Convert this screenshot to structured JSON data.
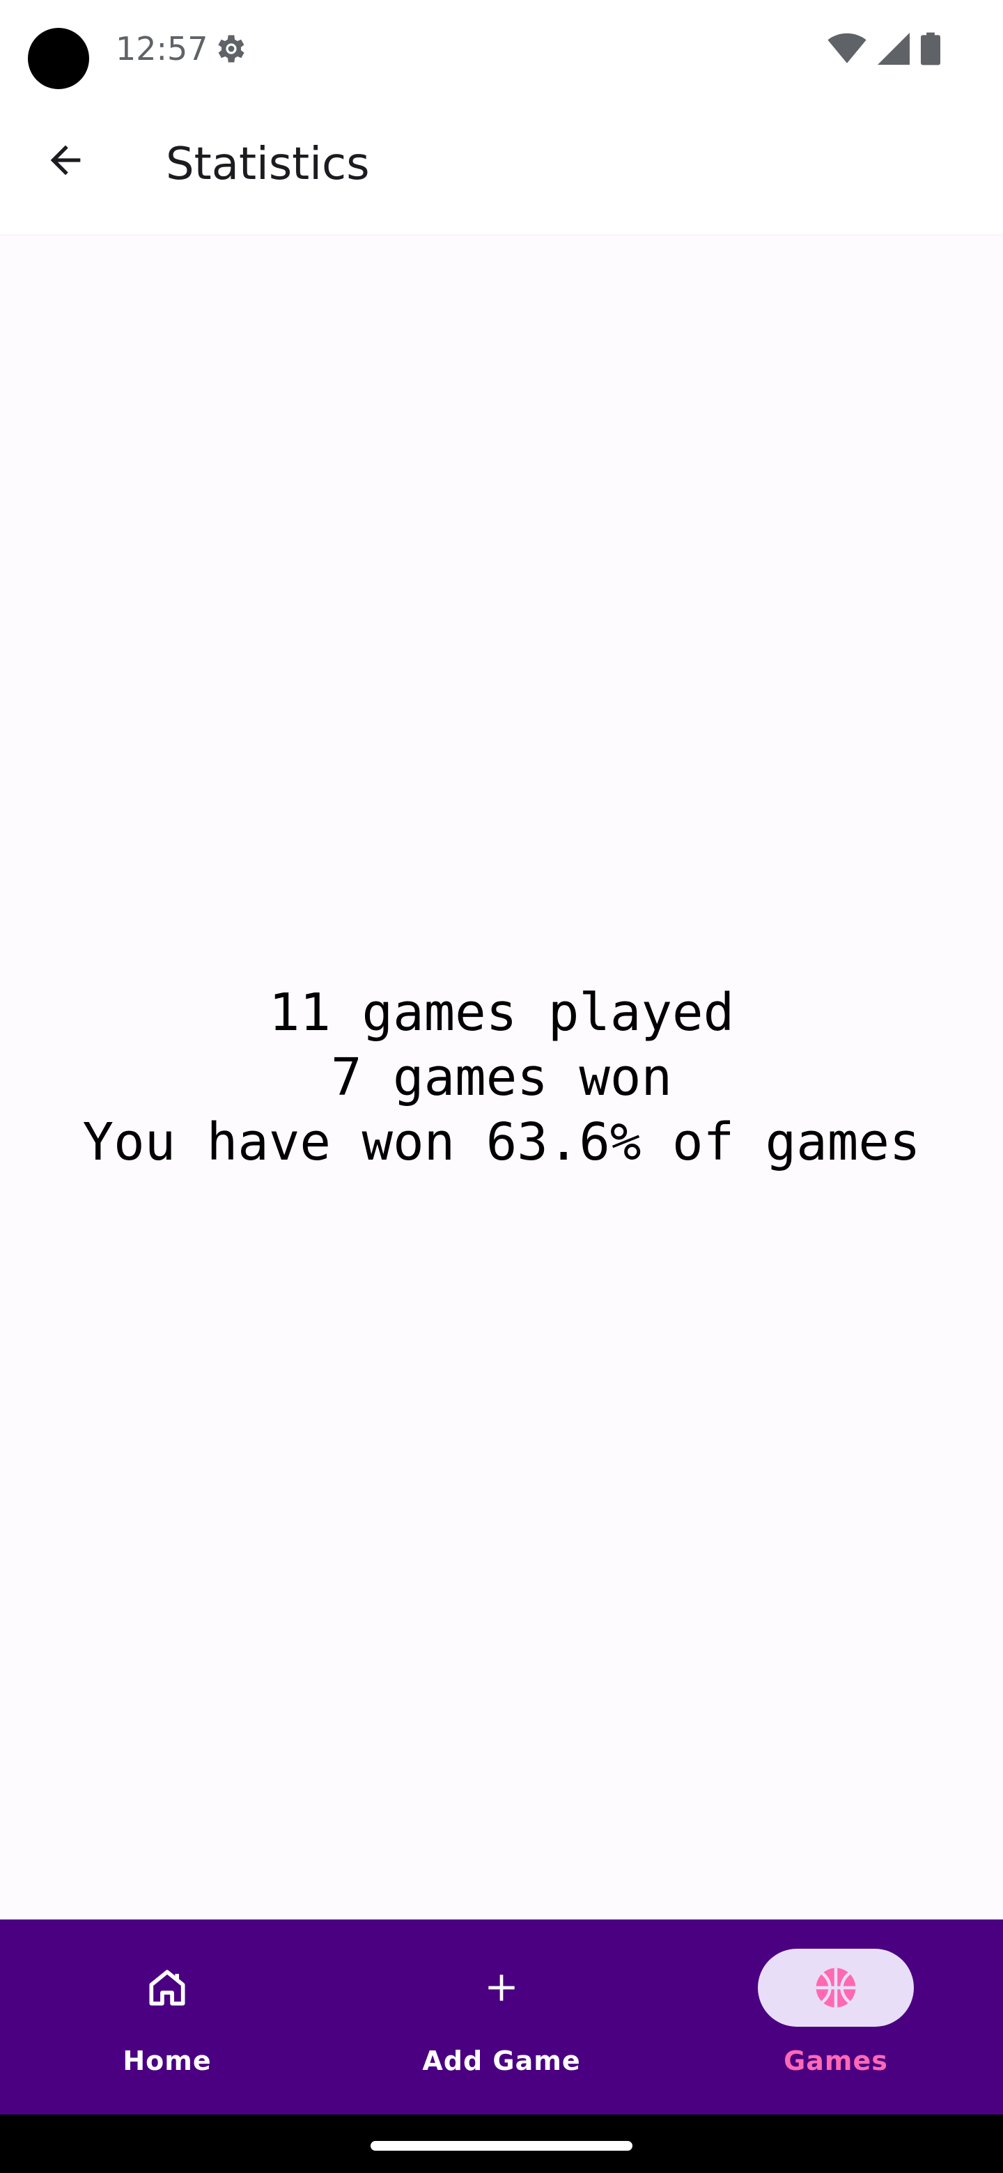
{
  "status_bar": {
    "time": "12:57",
    "icons": [
      "camera-dot",
      "settings-gear-icon",
      "wifi-icon",
      "cell-signal-icon",
      "battery-icon"
    ]
  },
  "app_bar": {
    "title": "Statistics",
    "back_icon": "arrow-back-icon"
  },
  "stats": {
    "played": "11 games played",
    "won": "7 games won",
    "percent": "You have won 63.6% of games"
  },
  "bottom_nav": {
    "background": "#4b0082",
    "active_pill": "#e8def8",
    "active_color": "#ff69b4",
    "items": [
      {
        "label": "Home",
        "icon": "home-icon",
        "active": false
      },
      {
        "label": "Add Game",
        "icon": "plus-icon",
        "active": false
      },
      {
        "label": "Games",
        "icon": "basketball-icon",
        "active": true
      }
    ]
  }
}
